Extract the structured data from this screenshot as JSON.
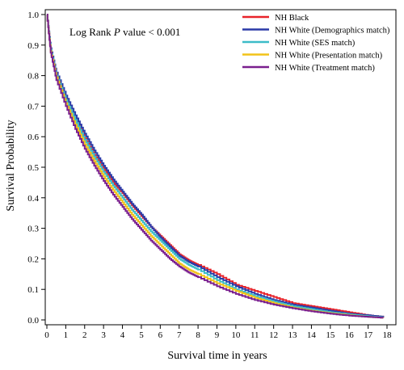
{
  "chart_data": {
    "type": "line",
    "title": "",
    "xlabel": "Survival time in years",
    "ylabel": "Survival Probability",
    "annotation": {
      "prefix": "Log Rank ",
      "italic": "P",
      "suffix": " value < 0.001"
    },
    "xlim": [
      0,
      18
    ],
    "ylim": [
      0,
      1.0
    ],
    "xticks": [
      "0",
      "1",
      "2",
      "3",
      "4",
      "5",
      "6",
      "7",
      "8",
      "9",
      "10",
      "11",
      "12",
      "13",
      "14",
      "15",
      "16",
      "17",
      "18"
    ],
    "yticks": [
      "0.0",
      "0.1",
      "0.2",
      "0.3",
      "0.4",
      "0.5",
      "0.6",
      "0.7",
      "0.8",
      "0.9",
      "1.0"
    ],
    "grid": false,
    "legend_position": "top-right",
    "series": [
      {
        "name": "NH Black",
        "color": "#e8232a",
        "x": [
          0,
          0.2,
          0.5,
          1,
          1.5,
          2,
          2.5,
          3,
          3.5,
          4,
          4.5,
          5,
          5.5,
          6,
          6.5,
          7,
          7.5,
          8,
          9,
          10,
          11,
          12,
          13,
          14,
          15,
          16,
          17,
          17.8
        ],
        "y": [
          1.0,
          0.88,
          0.8,
          0.72,
          0.655,
          0.595,
          0.54,
          0.495,
          0.45,
          0.415,
          0.375,
          0.34,
          0.305,
          0.275,
          0.245,
          0.215,
          0.195,
          0.18,
          0.15,
          0.115,
          0.095,
          0.075,
          0.055,
          0.045,
          0.035,
          0.025,
          0.015,
          0.01
        ]
      },
      {
        "name": "NH White (Demographics match)",
        "color": "#2b3aa8",
        "x": [
          0,
          0.2,
          0.5,
          1,
          1.5,
          2,
          2.5,
          3,
          3.5,
          4,
          4.5,
          5,
          5.5,
          6,
          6.5,
          7,
          7.5,
          8,
          9,
          10,
          11,
          12,
          13,
          14,
          15,
          16,
          17,
          17.8
        ],
        "y": [
          1.0,
          0.89,
          0.81,
          0.735,
          0.67,
          0.61,
          0.555,
          0.505,
          0.46,
          0.42,
          0.38,
          0.345,
          0.305,
          0.27,
          0.24,
          0.21,
          0.19,
          0.175,
          0.14,
          0.11,
          0.085,
          0.065,
          0.05,
          0.04,
          0.03,
          0.02,
          0.015,
          0.01
        ]
      },
      {
        "name": "NH White (SES match)",
        "color": "#3cbcc8",
        "x": [
          0,
          0.2,
          0.5,
          1,
          1.5,
          2,
          2.5,
          3,
          3.5,
          4,
          4.5,
          5,
          5.5,
          6,
          6.5,
          7,
          7.5,
          8,
          9,
          10,
          11,
          12,
          13,
          14,
          15,
          16,
          17,
          17.8
        ],
        "y": [
          1.0,
          0.885,
          0.8,
          0.72,
          0.655,
          0.59,
          0.535,
          0.485,
          0.44,
          0.4,
          0.36,
          0.325,
          0.29,
          0.26,
          0.23,
          0.2,
          0.18,
          0.165,
          0.13,
          0.1,
          0.078,
          0.06,
          0.045,
          0.035,
          0.025,
          0.018,
          0.012,
          0.008
        ]
      },
      {
        "name": "NH White (Presentation match)",
        "color": "#f2c318",
        "x": [
          0,
          0.2,
          0.5,
          1,
          1.5,
          2,
          2.5,
          3,
          3.5,
          4,
          4.5,
          5,
          5.5,
          6,
          6.5,
          7,
          7.5,
          8,
          9,
          10,
          11,
          12,
          13,
          14,
          15,
          16,
          17,
          17.8
        ],
        "y": [
          1.0,
          0.88,
          0.795,
          0.71,
          0.64,
          0.575,
          0.52,
          0.47,
          0.425,
          0.385,
          0.345,
          0.31,
          0.275,
          0.245,
          0.215,
          0.185,
          0.165,
          0.15,
          0.12,
          0.095,
          0.072,
          0.055,
          0.04,
          0.03,
          0.022,
          0.015,
          0.01,
          0.007
        ]
      },
      {
        "name": "NH White (Treatment match)",
        "color": "#7a1f8e",
        "x": [
          0,
          0.2,
          0.5,
          1,
          1.5,
          2,
          2.5,
          3,
          3.5,
          4,
          4.5,
          5,
          5.5,
          6,
          6.5,
          7,
          7.5,
          8,
          9,
          10,
          11,
          12,
          13,
          14,
          15,
          16,
          17,
          17.8
        ],
        "y": [
          1.0,
          0.875,
          0.785,
          0.7,
          0.625,
          0.56,
          0.505,
          0.455,
          0.41,
          0.37,
          0.33,
          0.295,
          0.26,
          0.23,
          0.2,
          0.175,
          0.155,
          0.14,
          0.11,
          0.085,
          0.065,
          0.05,
          0.038,
          0.028,
          0.02,
          0.014,
          0.01,
          0.007
        ]
      }
    ]
  }
}
